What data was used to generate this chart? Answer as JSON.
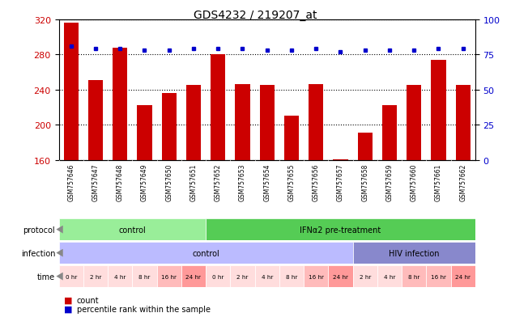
{
  "title": "GDS4232 / 219207_at",
  "samples": [
    "GSM757646",
    "GSM757647",
    "GSM757648",
    "GSM757649",
    "GSM757650",
    "GSM757651",
    "GSM757652",
    "GSM757653",
    "GSM757654",
    "GSM757655",
    "GSM757656",
    "GSM757657",
    "GSM757658",
    "GSM757659",
    "GSM757660",
    "GSM757661",
    "GSM757662"
  ],
  "counts": [
    316,
    251,
    288,
    222,
    236,
    245,
    280,
    246,
    245,
    210,
    246,
    161,
    191,
    222,
    245,
    274,
    245
  ],
  "percentile_ranks": [
    81,
    79,
    79,
    78,
    78,
    79,
    79,
    79,
    78,
    78,
    79,
    77,
    78,
    78,
    78,
    79,
    79
  ],
  "ylim_left": [
    160,
    320
  ],
  "ylim_right": [
    0,
    100
  ],
  "yticks_left": [
    160,
    200,
    240,
    280,
    320
  ],
  "yticks_right": [
    0,
    25,
    50,
    75,
    100
  ],
  "bar_color": "#CC0000",
  "dot_color": "#0000CC",
  "protocol_groups": [
    {
      "label": "control",
      "start": 0,
      "end": 6,
      "color": "#99EE99"
    },
    {
      "label": "IFNα2 pre-treatment",
      "start": 6,
      "end": 17,
      "color": "#55CC55"
    }
  ],
  "infection_groups": [
    {
      "label": "control",
      "start": 0,
      "end": 12,
      "color": "#BBBBFF"
    },
    {
      "label": "HIV infection",
      "start": 12,
      "end": 17,
      "color": "#8888CC"
    }
  ],
  "time_labels": [
    "0 hr",
    "2 hr",
    "4 hr",
    "8 hr",
    "16 hr",
    "24 hr",
    "0 hr",
    "2 hr",
    "4 hr",
    "8 hr",
    "16 hr",
    "24 hr",
    "2 hr",
    "4 hr",
    "8 hr",
    "16 hr",
    "24 hr"
  ],
  "time_bg_colors": [
    "#FFDDDD",
    "#FFDDDD",
    "#FFDDDD",
    "#FFDDDD",
    "#FFBBBB",
    "#FF9999",
    "#FFDDDD",
    "#FFDDDD",
    "#FFDDDD",
    "#FFDDDD",
    "#FFBBBB",
    "#FF9999",
    "#FFDDDD",
    "#FFDDDD",
    "#FFBBBB",
    "#FFBBBB",
    "#FF9999"
  ],
  "xtick_bg": "#CCCCCC",
  "legend_count_color": "#CC0000",
  "legend_dot_color": "#0000CC",
  "row_labels": [
    "protocol",
    "infection",
    "time"
  ],
  "arrow_color": "#888888"
}
